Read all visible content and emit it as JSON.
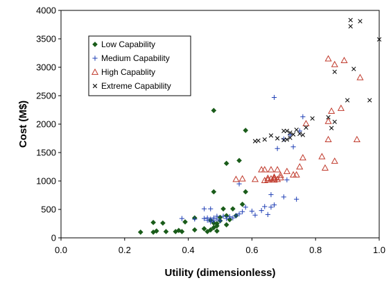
{
  "chart_data": {
    "type": "scatter",
    "title": "",
    "xlabel": "Utility (dimensionless)",
    "ylabel": "Cost (M$)",
    "xlim": [
      0,
      1
    ],
    "ylim": [
      0,
      4000
    ],
    "xticks": [
      "0.0",
      "0.2",
      "0.4",
      "0.6",
      "0.8",
      "1.0"
    ],
    "yticks": [
      "0",
      "500",
      "1000",
      "1500",
      "2000",
      "2500",
      "3000",
      "3500",
      "4000"
    ],
    "xtick_values": [
      0,
      0.2,
      0.4,
      0.6,
      0.8,
      1.0
    ],
    "ytick_values": [
      0,
      500,
      1000,
      1500,
      2000,
      2500,
      3000,
      3500,
      4000
    ],
    "grid": false,
    "legend_position": "top-left",
    "series": [
      {
        "name": "Low Capability",
        "marker": "diamond",
        "color": "#1a5c1a",
        "points": [
          [
            0.25,
            100
          ],
          [
            0.29,
            100
          ],
          [
            0.3,
            120
          ],
          [
            0.29,
            270
          ],
          [
            0.32,
            260
          ],
          [
            0.33,
            110
          ],
          [
            0.36,
            110
          ],
          [
            0.37,
            130
          ],
          [
            0.38,
            110
          ],
          [
            0.39,
            280
          ],
          [
            0.42,
            140
          ],
          [
            0.42,
            350
          ],
          [
            0.46,
            110
          ],
          [
            0.47,
            140
          ],
          [
            0.48,
            260
          ],
          [
            0.48,
            180
          ],
          [
            0.49,
            210
          ],
          [
            0.49,
            120
          ],
          [
            0.48,
            810
          ],
          [
            0.48,
            2240
          ],
          [
            0.5,
            360
          ],
          [
            0.51,
            510
          ],
          [
            0.52,
            230
          ],
          [
            0.52,
            1310
          ],
          [
            0.53,
            320
          ],
          [
            0.54,
            510
          ],
          [
            0.55,
            390
          ],
          [
            0.56,
            1360
          ],
          [
            0.57,
            590
          ],
          [
            0.58,
            1890
          ],
          [
            0.58,
            810
          ],
          [
            0.52,
            390
          ],
          [
            0.5,
            300
          ],
          [
            0.49,
            250
          ],
          [
            0.47,
            310
          ],
          [
            0.45,
            160
          ]
        ]
      },
      {
        "name": "Medium Capability",
        "marker": "plus",
        "color": "#1f3fb5",
        "points": [
          [
            0.38,
            340
          ],
          [
            0.42,
            330
          ],
          [
            0.45,
            340
          ],
          [
            0.45,
            510
          ],
          [
            0.46,
            350
          ],
          [
            0.46,
            310
          ],
          [
            0.47,
            330
          ],
          [
            0.47,
            280
          ],
          [
            0.47,
            510
          ],
          [
            0.48,
            300
          ],
          [
            0.48,
            350
          ],
          [
            0.49,
            330
          ],
          [
            0.49,
            380
          ],
          [
            0.5,
            300
          ],
          [
            0.51,
            380
          ],
          [
            0.52,
            340
          ],
          [
            0.53,
            370
          ],
          [
            0.54,
            350
          ],
          [
            0.55,
            390
          ],
          [
            0.56,
            420
          ],
          [
            0.57,
            460
          ],
          [
            0.58,
            540
          ],
          [
            0.6,
            470
          ],
          [
            0.61,
            400
          ],
          [
            0.63,
            480
          ],
          [
            0.64,
            550
          ],
          [
            0.65,
            410
          ],
          [
            0.66,
            540
          ],
          [
            0.67,
            580
          ],
          [
            0.66,
            760
          ],
          [
            0.67,
            2470
          ],
          [
            0.68,
            1570
          ],
          [
            0.7,
            720
          ],
          [
            0.71,
            1020
          ],
          [
            0.72,
            1810
          ],
          [
            0.73,
            1600
          ],
          [
            0.74,
            680
          ],
          [
            0.75,
            1880
          ],
          [
            0.76,
            2130
          ],
          [
            0.7,
            1740
          ],
          [
            0.56,
            950
          ]
        ]
      },
      {
        "name": "High Capablity",
        "marker": "triangle",
        "color": "#c0392b",
        "points": [
          [
            0.55,
            1030
          ],
          [
            0.57,
            1040
          ],
          [
            0.61,
            1030
          ],
          [
            0.63,
            1200
          ],
          [
            0.64,
            1010
          ],
          [
            0.64,
            1200
          ],
          [
            0.65,
            1020
          ],
          [
            0.65,
            1050
          ],
          [
            0.66,
            1040
          ],
          [
            0.66,
            1200
          ],
          [
            0.67,
            1020
          ],
          [
            0.67,
            1050
          ],
          [
            0.67,
            1070
          ],
          [
            0.68,
            1030
          ],
          [
            0.68,
            1200
          ],
          [
            0.69,
            1100
          ],
          [
            0.69,
            1060
          ],
          [
            0.71,
            1170
          ],
          [
            0.73,
            1110
          ],
          [
            0.74,
            1110
          ],
          [
            0.75,
            1250
          ],
          [
            0.76,
            1410
          ],
          [
            0.77,
            2010
          ],
          [
            0.82,
            1430
          ],
          [
            0.83,
            1230
          ],
          [
            0.84,
            1730
          ],
          [
            0.84,
            2050
          ],
          [
            0.84,
            3150
          ],
          [
            0.85,
            2230
          ],
          [
            0.86,
            1350
          ],
          [
            0.86,
            3050
          ],
          [
            0.88,
            2280
          ],
          [
            0.89,
            3120
          ],
          [
            0.93,
            1730
          ],
          [
            0.94,
            2820
          ]
        ]
      },
      {
        "name": "Extreme Capability",
        "marker": "x",
        "color": "#111111",
        "points": [
          [
            0.61,
            1700
          ],
          [
            0.62,
            1710
          ],
          [
            0.64,
            1730
          ],
          [
            0.66,
            1800
          ],
          [
            0.68,
            1750
          ],
          [
            0.7,
            1720
          ],
          [
            0.7,
            1880
          ],
          [
            0.71,
            1730
          ],
          [
            0.71,
            1880
          ],
          [
            0.72,
            1760
          ],
          [
            0.72,
            1850
          ],
          [
            0.73,
            1820
          ],
          [
            0.74,
            1900
          ],
          [
            0.75,
            1830
          ],
          [
            0.76,
            1810
          ],
          [
            0.77,
            1940
          ],
          [
            0.79,
            2100
          ],
          [
            0.84,
            2120
          ],
          [
            0.85,
            1930
          ],
          [
            0.86,
            2040
          ],
          [
            0.86,
            2920
          ],
          [
            0.9,
            2420
          ],
          [
            0.91,
            3720
          ],
          [
            0.91,
            3830
          ],
          [
            0.92,
            2970
          ],
          [
            0.94,
            3810
          ],
          [
            0.97,
            2420
          ],
          [
            1.0,
            3490
          ]
        ]
      }
    ]
  }
}
